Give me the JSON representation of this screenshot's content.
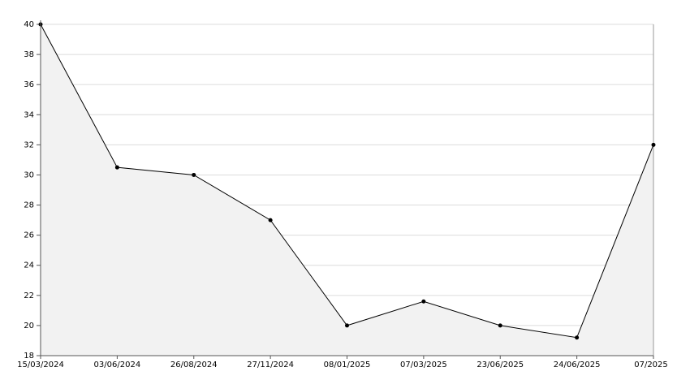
{
  "chart_data": {
    "type": "line",
    "categories": [
      "15/03/2024",
      "03/06/2024",
      "26/08/2024",
      "27/11/2024",
      "08/01/2025",
      "07/03/2025",
      "23/06/2025",
      "24/06/2025",
      "07/2025"
    ],
    "values": [
      40,
      30.5,
      30,
      27,
      20,
      21.6,
      20,
      19.2,
      32
    ],
    "color": "#000000",
    "area_color": "#f2f2f2",
    "ylim": [
      18,
      40
    ],
    "yticks": [
      18,
      20,
      22,
      24,
      26,
      28,
      30,
      32,
      34,
      36,
      38,
      40
    ],
    "grid": true
  }
}
